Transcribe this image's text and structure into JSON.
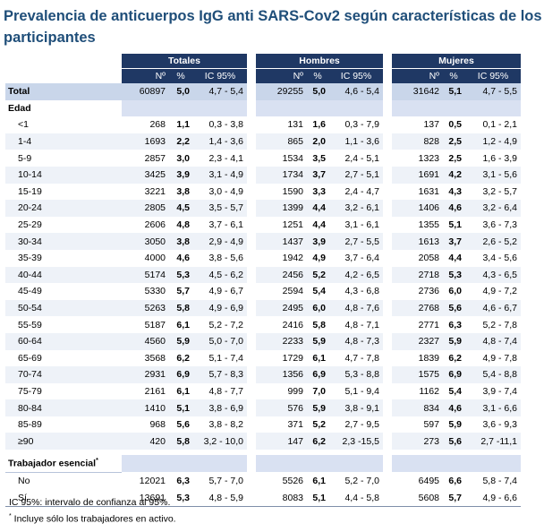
{
  "title": "Prevalencia de anticuerpos IgG anti SARS-Cov2 según características de los participantes",
  "groups": {
    "total": "Totales",
    "men": "Hombres",
    "women": "Mujeres"
  },
  "subheaders": {
    "n": "Nº",
    "pct": "%",
    "ci": "IC 95%"
  },
  "total_row": {
    "label": "Total",
    "t_n": "60897",
    "t_pct": "5,0",
    "t_ci": "4,7 -  5,4",
    "m_n": "29255",
    "m_pct": "5,0",
    "m_ci": "4,6 -  5,4",
    "w_n": "31642",
    "w_pct": "5,1",
    "w_ci": "4,7 -  5,5"
  },
  "age_section": "Edad",
  "age_rows": [
    {
      "label": "<1",
      "t": [
        "268",
        "1,1",
        "0,3 -  3,8"
      ],
      "m": [
        "131",
        "1,6",
        "0,3 -  7,9"
      ],
      "w": [
        "137",
        "0,5",
        "0,1 -  2,1"
      ]
    },
    {
      "label": "1-4",
      "t": [
        "1693",
        "2,2",
        "1,4 -  3,6"
      ],
      "m": [
        "865",
        "2,0",
        "1,1 -  3,6"
      ],
      "w": [
        "828",
        "2,5",
        "1,2 -  4,9"
      ]
    },
    {
      "label": "5-9",
      "t": [
        "2857",
        "3,0",
        "2,3 -  4,1"
      ],
      "m": [
        "1534",
        "3,5",
        "2,4 -  5,1"
      ],
      "w": [
        "1323",
        "2,5",
        "1,6 -  3,9"
      ]
    },
    {
      "label": "10-14",
      "t": [
        "3425",
        "3,9",
        "3,1 -  4,9"
      ],
      "m": [
        "1734",
        "3,7",
        "2,7 -  5,1"
      ],
      "w": [
        "1691",
        "4,2",
        "3,1 -  5,6"
      ]
    },
    {
      "label": "15-19",
      "t": [
        "3221",
        "3,8",
        "3,0 -  4,9"
      ],
      "m": [
        "1590",
        "3,3",
        "2,4 -  4,7"
      ],
      "w": [
        "1631",
        "4,3",
        "3,2 -  5,7"
      ]
    },
    {
      "label": "20-24",
      "t": [
        "2805",
        "4,5",
        "3,5 -  5,7"
      ],
      "m": [
        "1399",
        "4,4",
        "3,2 -  6,1"
      ],
      "w": [
        "1406",
        "4,6",
        "3,2 -  6,4"
      ]
    },
    {
      "label": "25-29",
      "t": [
        "2606",
        "4,8",
        "3,7 -  6,1"
      ],
      "m": [
        "1251",
        "4,4",
        "3,1 -  6,1"
      ],
      "w": [
        "1355",
        "5,1",
        "3,6 -  7,3"
      ]
    },
    {
      "label": "30-34",
      "t": [
        "3050",
        "3,8",
        "2,9 -  4,9"
      ],
      "m": [
        "1437",
        "3,9",
        "2,7 -  5,5"
      ],
      "w": [
        "1613",
        "3,7",
        "2,6 -  5,2"
      ]
    },
    {
      "label": "35-39",
      "t": [
        "4000",
        "4,6",
        "3,8 -  5,6"
      ],
      "m": [
        "1942",
        "4,9",
        "3,7 -  6,4"
      ],
      "w": [
        "2058",
        "4,4",
        "3,4 -  5,6"
      ]
    },
    {
      "label": "40-44",
      "t": [
        "5174",
        "5,3",
        "4,5 -  6,2"
      ],
      "m": [
        "2456",
        "5,2",
        "4,2 -  6,5"
      ],
      "w": [
        "2718",
        "5,3",
        "4,3 -  6,5"
      ]
    },
    {
      "label": "45-49",
      "t": [
        "5330",
        "5,7",
        "4,9 -  6,7"
      ],
      "m": [
        "2594",
        "5,4",
        "4,3 -  6,8"
      ],
      "w": [
        "2736",
        "6,0",
        "4,9 -  7,2"
      ]
    },
    {
      "label": "50-54",
      "t": [
        "5263",
        "5,8",
        "4,9 -  6,9"
      ],
      "m": [
        "2495",
        "6,0",
        "4,8 -  7,6"
      ],
      "w": [
        "2768",
        "5,6",
        "4,6 -  6,7"
      ]
    },
    {
      "label": "55-59",
      "t": [
        "5187",
        "6,1",
        "5,2 -  7,2"
      ],
      "m": [
        "2416",
        "5,8",
        "4,8 -  7,1"
      ],
      "w": [
        "2771",
        "6,3",
        "5,2 -  7,8"
      ]
    },
    {
      "label": "60-64",
      "t": [
        "4560",
        "5,9",
        "5,0 -  7,0"
      ],
      "m": [
        "2233",
        "5,9",
        "4,8 -  7,3"
      ],
      "w": [
        "2327",
        "5,9",
        "4,8 -  7,4"
      ]
    },
    {
      "label": "65-69",
      "t": [
        "3568",
        "6,2",
        "5,1 -  7,4"
      ],
      "m": [
        "1729",
        "6,1",
        "4,7 -  7,8"
      ],
      "w": [
        "1839",
        "6,2",
        "4,9 -  7,8"
      ]
    },
    {
      "label": "70-74",
      "t": [
        "2931",
        "6,9",
        "5,7 -  8,3"
      ],
      "m": [
        "1356",
        "6,9",
        "5,3 -  8,8"
      ],
      "w": [
        "1575",
        "6,9",
        "5,4 -  8,8"
      ]
    },
    {
      "label": "75-79",
      "t": [
        "2161",
        "6,1",
        "4,8 -  7,7"
      ],
      "m": [
        "999",
        "7,0",
        "5,1 -  9,4"
      ],
      "w": [
        "1162",
        "5,4",
        "3,9 -  7,4"
      ]
    },
    {
      "label": "80-84",
      "t": [
        "1410",
        "5,1",
        "3,8 -  6,9"
      ],
      "m": [
        "576",
        "5,9",
        "3,8 -  9,1"
      ],
      "w": [
        "834",
        "4,6",
        "3,1 -  6,6"
      ]
    },
    {
      "label": "85-89",
      "t": [
        "968",
        "5,6",
        "3,8 -  8,2"
      ],
      "m": [
        "371",
        "5,2",
        "2,7 -  9,5"
      ],
      "w": [
        "597",
        "5,9",
        "3,6 -  9,3"
      ]
    },
    {
      "label": "≥90",
      "t": [
        "420",
        "5,8",
        "3,2 - 10,0"
      ],
      "m": [
        "147",
        "6,2",
        "2,3 -15,5"
      ],
      "w": [
        "273",
        "5,6",
        "2,7 -11,1"
      ]
    }
  ],
  "worker_section": "Trabajador esencial",
  "worker_marker": "*",
  "worker_rows": [
    {
      "label": "No",
      "t": [
        "12021",
        "6,3",
        "5,7 -  7,0"
      ],
      "m": [
        "5526",
        "6,1",
        "5,2 -  7,0"
      ],
      "w": [
        "6495",
        "6,6",
        "5,8 -  7,4"
      ]
    },
    {
      "label": "Sí",
      "t": [
        "13691",
        "5,3",
        "4,8 -  5,9"
      ],
      "m": [
        "8083",
        "5,1",
        "4,4 -  5,8"
      ],
      "w": [
        "5608",
        "5,7",
        "4,9 -  6,6"
      ]
    }
  ],
  "notes": {
    "ci": "IC 95%: intervalo de confianza al 95%.",
    "marker": "*",
    "workers": " Incluye sólo los trabajadores en activo."
  },
  "colors": {
    "header": "#1f3864",
    "title": "#1f4e79",
    "shade": "#d9e1f2"
  }
}
